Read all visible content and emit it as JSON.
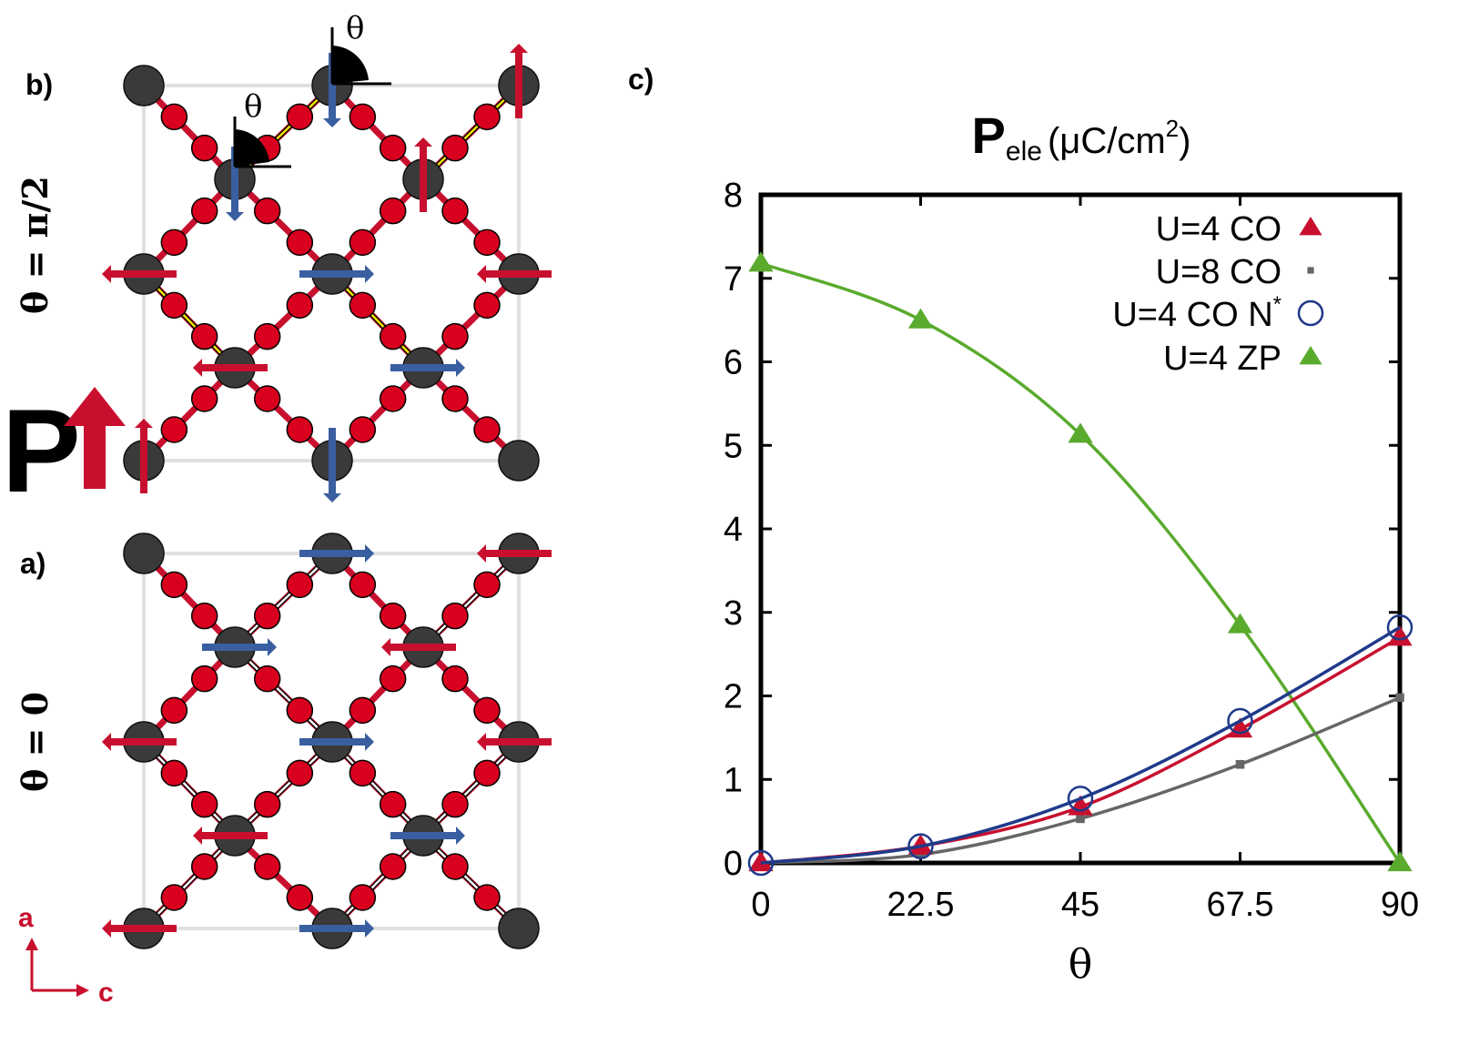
{
  "panels": {
    "b_label": "b)",
    "a_label": "a)",
    "c_label": "c)",
    "b_side_label": "θ = π/2",
    "a_side_label": "θ = 0",
    "angle_symbol": "θ",
    "polarization_letter": "P",
    "axis_a": "a",
    "axis_c": "c"
  },
  "colors": {
    "metal_atom": "#3a3a3a",
    "oxygen_atom": "#d8001e",
    "bond": "#c8102e",
    "spin_red": "#c8102e",
    "spin_blue": "#3a5fa0",
    "zigzag_b": "#f2e600",
    "zigzag_a": "#ffffff",
    "cell_frame": "#e0e0e0"
  },
  "chart_data": {
    "type": "line",
    "title_main": "P",
    "title_sub": "ele",
    "title_units": "(μC/cm",
    "title_sup": "2",
    "title_close": ")",
    "xlabel": "θ",
    "ylabel": "",
    "xlim": [
      0,
      90
    ],
    "ylim": [
      0,
      8
    ],
    "x_ticks": [
      "0",
      "22.5",
      "45",
      "67.5",
      "90"
    ],
    "y_ticks": [
      "0",
      "1",
      "2",
      "3",
      "4",
      "5",
      "6",
      "7",
      "8"
    ],
    "grid": false,
    "legend_position": "top-right",
    "series": [
      {
        "name": "U=4 CO",
        "color": "#c8102e",
        "marker": "triangle",
        "filled": true,
        "x": [
          0,
          22.5,
          45,
          67.5,
          90
        ],
        "y": [
          0,
          0.2,
          0.67,
          1.6,
          2.7
        ]
      },
      {
        "name": "U=8 CO",
        "color": "#666666",
        "marker": "square",
        "filled": true,
        "x": [
          0,
          22.5,
          45,
          67.5,
          90
        ],
        "y": [
          0,
          0.1,
          0.53,
          1.18,
          1.98
        ]
      },
      {
        "name": "U=4 CO N",
        "name_sup": "*",
        "color": "#1f3a8a",
        "marker": "circle",
        "filled": false,
        "x": [
          0,
          22.5,
          45,
          67.5,
          90
        ],
        "y": [
          0,
          0.2,
          0.77,
          1.7,
          2.82
        ]
      },
      {
        "name": "U=4 ZP",
        "color": "#5aaa2e",
        "marker": "triangle",
        "filled": true,
        "x": [
          0,
          22.5,
          45,
          67.5,
          90
        ],
        "y": [
          7.18,
          6.5,
          5.13,
          2.85,
          0.0
        ]
      }
    ]
  }
}
